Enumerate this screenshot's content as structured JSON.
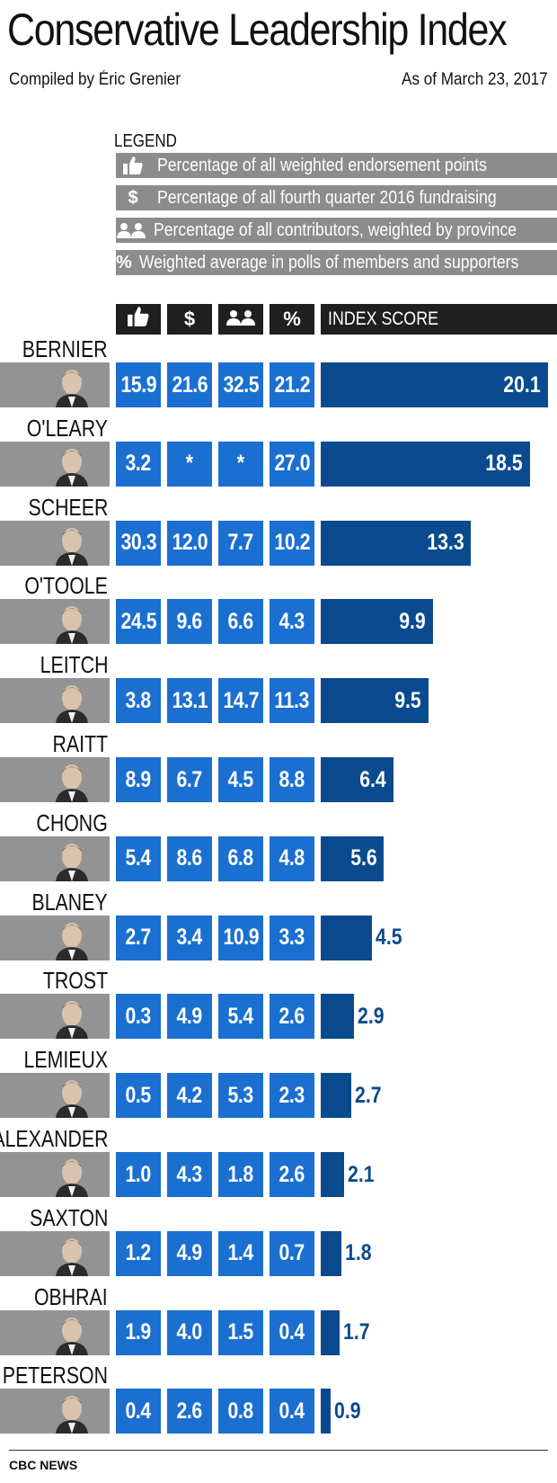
{
  "header": {
    "title": "Conservative Leadership Index",
    "credit": "Compiled by Éric Grenier",
    "date": "As of March 23, 2017"
  },
  "legend": {
    "title": "LEGEND",
    "items": [
      {
        "icon": "thumbs-up-icon",
        "symbol": "",
        "label": "Percentage of all weighted endorsement points"
      },
      {
        "icon": "dollar-icon",
        "symbol": "$",
        "label": "Percentage of all fourth quarter 2016 fundraising"
      },
      {
        "icon": "people-icon",
        "symbol": "",
        "label": "Percentage of all contributors, weighted by province"
      },
      {
        "icon": "percent-icon",
        "symbol": "%",
        "label": "Weighted average in polls of members and supporters"
      }
    ]
  },
  "table_header": {
    "dollar": "$",
    "percent": "%",
    "score": "INDEX SCORE"
  },
  "colors": {
    "cell": "#1a6fd0",
    "bar": "#0a4a8e",
    "legend_row": "#8c8c8c",
    "header": "#1f1f1f"
  },
  "chart_data": {
    "type": "bar",
    "title": "Conservative Leadership Index",
    "columns": [
      "Endorsements",
      "Fundraising",
      "Contributors",
      "Polls",
      "INDEX SCORE"
    ],
    "categories": [
      "BERNIER",
      "O'LEARY",
      "SCHEER",
      "O'TOOLE",
      "LEITCH",
      "RAITT",
      "CHONG",
      "BLANEY",
      "TROST",
      "LEMIEUX",
      "ALEXANDER",
      "SAXTON",
      "OBHRAI",
      "PETERSON"
    ],
    "endorsements": [
      "15.9",
      "3.2",
      "30.3",
      "24.5",
      "3.8",
      "8.9",
      "5.4",
      "2.7",
      "0.3",
      "0.5",
      "1.0",
      "1.2",
      "1.9",
      "0.4"
    ],
    "fundraising": [
      "21.6",
      "*",
      "12.0",
      "9.6",
      "13.1",
      "6.7",
      "8.6",
      "3.4",
      "4.9",
      "4.2",
      "4.3",
      "4.9",
      "4.0",
      "2.6"
    ],
    "contributors": [
      "32.5",
      "*",
      "7.7",
      "6.6",
      "14.7",
      "4.5",
      "6.8",
      "10.9",
      "5.4",
      "5.3",
      "1.8",
      "1.4",
      "1.5",
      "0.8"
    ],
    "polls": [
      "21.2",
      "27.0",
      "10.2",
      "4.3",
      "11.3",
      "8.8",
      "4.8",
      "3.3",
      "2.6",
      "2.3",
      "2.6",
      "0.7",
      "0.4",
      "0.4"
    ],
    "index_score": [
      20.1,
      18.5,
      13.3,
      9.9,
      9.5,
      6.4,
      5.6,
      4.5,
      2.9,
      2.7,
      2.1,
      1.8,
      1.7,
      0.9
    ],
    "index_score_labels": [
      "20.1",
      "18.5",
      "13.3",
      "9.9",
      "9.5",
      "6.4",
      "5.6",
      "4.5",
      "2.9",
      "2.7",
      "2.1",
      "1.8",
      "1.7",
      "0.9"
    ]
  },
  "footer": {
    "source": "CBC NEWS"
  }
}
